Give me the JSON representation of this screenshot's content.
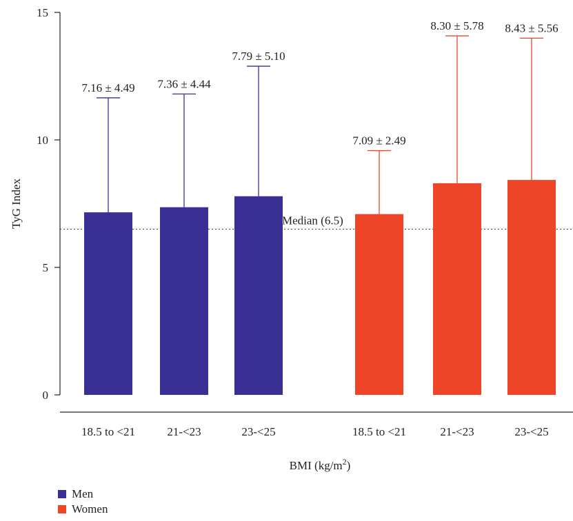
{
  "chart_data": {
    "type": "bar",
    "ylabel": "TyG Index",
    "xlabel_main": "BMI (kg/m",
    "xlabel_sup": "2",
    "xlabel_close": ")",
    "ylim": [
      0,
      15
    ],
    "yticks": [
      0,
      5,
      10,
      15
    ],
    "ytick_labels": [
      "0",
      "5",
      "10",
      "15"
    ],
    "grid": false,
    "legend_position": "bottom-left",
    "reference_line": {
      "value": 6.5,
      "label": "Median (6.5)",
      "style": "dotted"
    },
    "groups": [
      {
        "name": "Men",
        "color": "#3a2f94",
        "categories": [
          "18.5 to <21",
          "21-<23",
          "23-<25"
        ],
        "values": [
          7.16,
          7.36,
          7.79
        ],
        "sd": [
          4.49,
          4.44,
          5.1
        ],
        "labels": [
          "7.16 ± 4.49",
          "7.36 ± 4.44",
          "7.79 ± 5.10"
        ]
      },
      {
        "name": "Women",
        "color": "#ee4528",
        "categories": [
          "18.5 to <21",
          "21-<23",
          "23-<25"
        ],
        "values": [
          7.09,
          8.3,
          8.43
        ],
        "sd": [
          2.49,
          5.78,
          5.56
        ],
        "labels": [
          "7.09 ± 2.49",
          "8.30 ± 5.78",
          "8.43 ± 5.56"
        ]
      }
    ],
    "legend": [
      {
        "name": "Men",
        "color": "#3a2f94"
      },
      {
        "name": "Women",
        "color": "#ee4528"
      }
    ]
  }
}
